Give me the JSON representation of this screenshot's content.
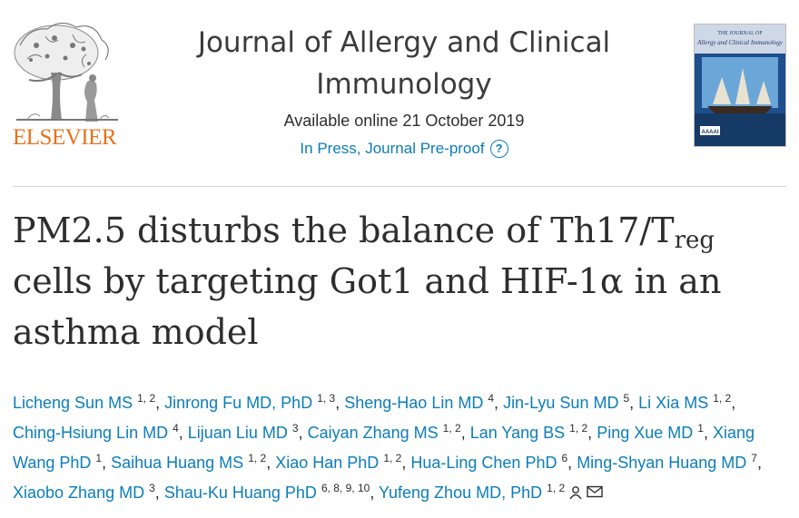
{
  "publisher": {
    "name": "ELSEVIER",
    "logo_icon": "tree-and-scholar-icon"
  },
  "journal": {
    "title_line1": "Journal of Allergy and Clinical",
    "title_line2": "Immunology",
    "available": "Available online 21 October 2019",
    "status": "In Press, Journal Pre-proof",
    "help_icon": "question-circle-icon"
  },
  "cover": {
    "top_text": "THE JOURNAL OF",
    "title_text": "Allergy and Clinical Immunology",
    "badge": "AAAAI"
  },
  "article": {
    "title_part1": "PM2.5 disturbs the balance of Th17/T",
    "title_sub": "reg",
    "title_part2": "cells by targeting Got1 and HIF-1α in an",
    "title_part3": "asthma model"
  },
  "authors": [
    {
      "name": "Licheng Sun MS",
      "aff": "1, 2"
    },
    {
      "name": "Jinrong Fu MD, PhD",
      "aff": "1, 3"
    },
    {
      "name": "Sheng-Hao Lin MD",
      "aff": "4"
    },
    {
      "name": "Jin-Lyu Sun MD",
      "aff": "5"
    },
    {
      "name": "Li Xia MS",
      "aff": "1, 2"
    },
    {
      "name": "Ching-Hsiung Lin MD",
      "aff": "4"
    },
    {
      "name": "Lijuan Liu MD",
      "aff": "3"
    },
    {
      "name": "Caiyan Zhang MS",
      "aff": "1, 2"
    },
    {
      "name": "Lan Yang BS",
      "aff": "1, 2"
    },
    {
      "name": "Ping Xue MD",
      "aff": "1"
    },
    {
      "name": "Xiang Wang PhD",
      "aff": "1"
    },
    {
      "name": "Saihua Huang MS",
      "aff": "1, 2"
    },
    {
      "name": "Xiao Han PhD",
      "aff": "1, 2"
    },
    {
      "name": "Hua-Ling Chen PhD",
      "aff": "6"
    },
    {
      "name": "Ming-Shyan Huang MD",
      "aff": "7"
    },
    {
      "name": "Xiaobo Zhang MD",
      "aff": "3"
    },
    {
      "name": "Shau-Ku Huang PhD",
      "aff": "6, 8, 9, 10"
    },
    {
      "name": "Yufeng Zhou MD, PhD",
      "aff": "1, 2"
    }
  ],
  "corresponding_icons": [
    "person-icon",
    "envelope-icon"
  ],
  "colors": {
    "link": "#0c7dbb",
    "elsevier_orange": "#e9711c",
    "text": "#2e2e2e"
  }
}
